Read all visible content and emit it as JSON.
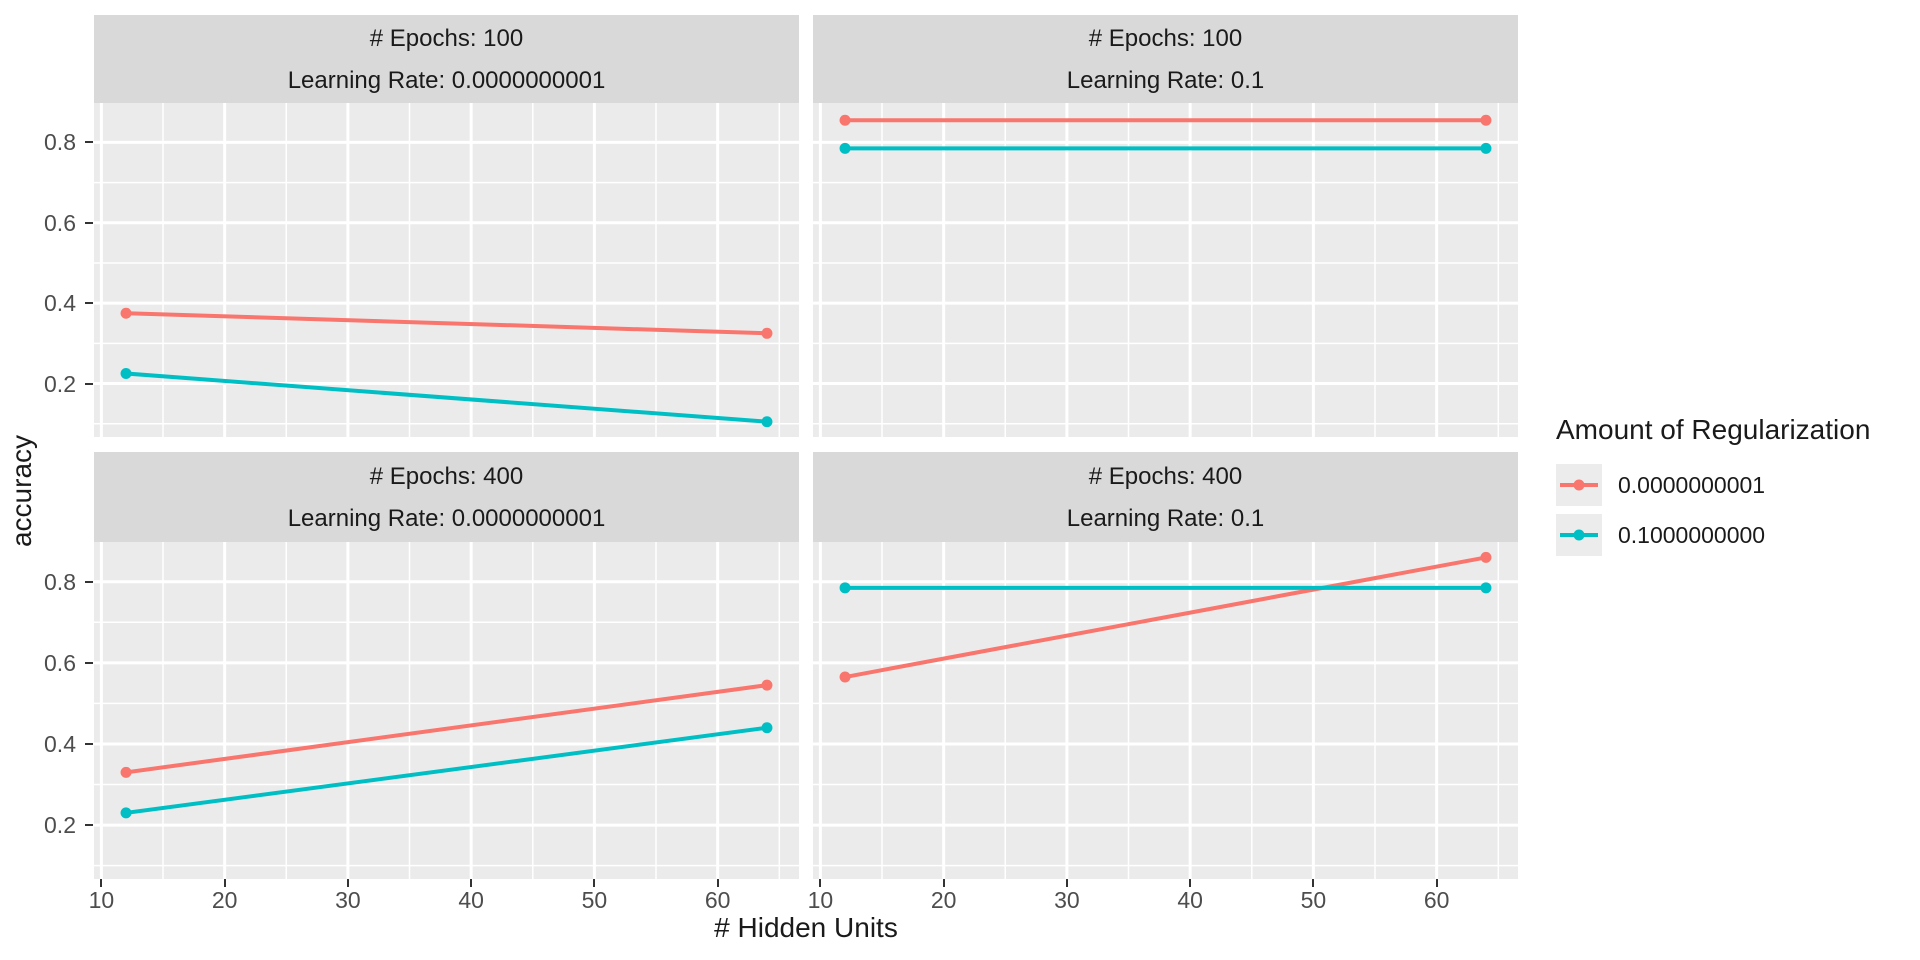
{
  "chart_data": {
    "type": "line",
    "xlabel": "# Hidden Units",
    "ylabel": "accuracy",
    "x": [
      12,
      64
    ],
    "xlim": [
      9.4,
      66.6
    ],
    "ylim": [
      0.067,
      0.898
    ],
    "x_ticks": [
      10,
      20,
      30,
      40,
      50,
      60
    ],
    "x_minor_ticks": [
      15,
      25,
      35,
      45,
      55,
      65
    ],
    "y_ticks": [
      0.2,
      0.4,
      0.6,
      0.8
    ],
    "y_minor_ticks": [
      0.1,
      0.3,
      0.5,
      0.7
    ],
    "grid": "white major and minor gridlines on grey panels",
    "facet_vars": [
      "# Epochs",
      "Learning Rate"
    ],
    "legend": {
      "title": "Amount of Regularization",
      "position": "right",
      "entries": [
        {
          "label": "0.0000000001",
          "color": "#F8766D"
        },
        {
          "label": "0.1000000000",
          "color": "#00BFC4"
        }
      ]
    },
    "facets": [
      {
        "strip_line1": "# Epochs: 100",
        "strip_line2": "Learning Rate: 0.0000000001",
        "series": [
          {
            "name": "0.0000000001",
            "color": "#F8766D",
            "x": [
              12,
              64
            ],
            "y": [
              0.375,
              0.325
            ]
          },
          {
            "name": "0.1000000000",
            "color": "#00BFC4",
            "x": [
              12,
              64
            ],
            "y": [
              0.225,
              0.105
            ]
          }
        ]
      },
      {
        "strip_line1": "# Epochs: 100",
        "strip_line2": "Learning Rate: 0.1",
        "series": [
          {
            "name": "0.0000000001",
            "color": "#F8766D",
            "x": [
              12,
              64
            ],
            "y": [
              0.855,
              0.855
            ]
          },
          {
            "name": "0.1000000000",
            "color": "#00BFC4",
            "x": [
              12,
              64
            ],
            "y": [
              0.785,
              0.785
            ]
          }
        ]
      },
      {
        "strip_line1": "# Epochs: 400",
        "strip_line2": "Learning Rate: 0.0000000001",
        "series": [
          {
            "name": "0.0000000001",
            "color": "#F8766D",
            "x": [
              12,
              64
            ],
            "y": [
              0.33,
              0.545
            ]
          },
          {
            "name": "0.1000000000",
            "color": "#00BFC4",
            "x": [
              12,
              64
            ],
            "y": [
              0.23,
              0.44
            ]
          }
        ]
      },
      {
        "strip_line1": "# Epochs: 400",
        "strip_line2": "Learning Rate: 0.1",
        "series": [
          {
            "name": "0.0000000001",
            "color": "#F8766D",
            "x": [
              12,
              64
            ],
            "y": [
              0.565,
              0.86
            ]
          },
          {
            "name": "0.1000000000",
            "color": "#00BFC4",
            "x": [
              12,
              64
            ],
            "y": [
              0.785,
              0.785
            ]
          }
        ]
      }
    ],
    "colors": {
      "panel_bg": "#EBEBEB",
      "strip_bg": "#D9D9D9",
      "gridline": "#FFFFFF",
      "tick_text": "#4D4D4D",
      "text": "#1A1A1A",
      "legend_key_bg": "#ECECEC"
    }
  }
}
